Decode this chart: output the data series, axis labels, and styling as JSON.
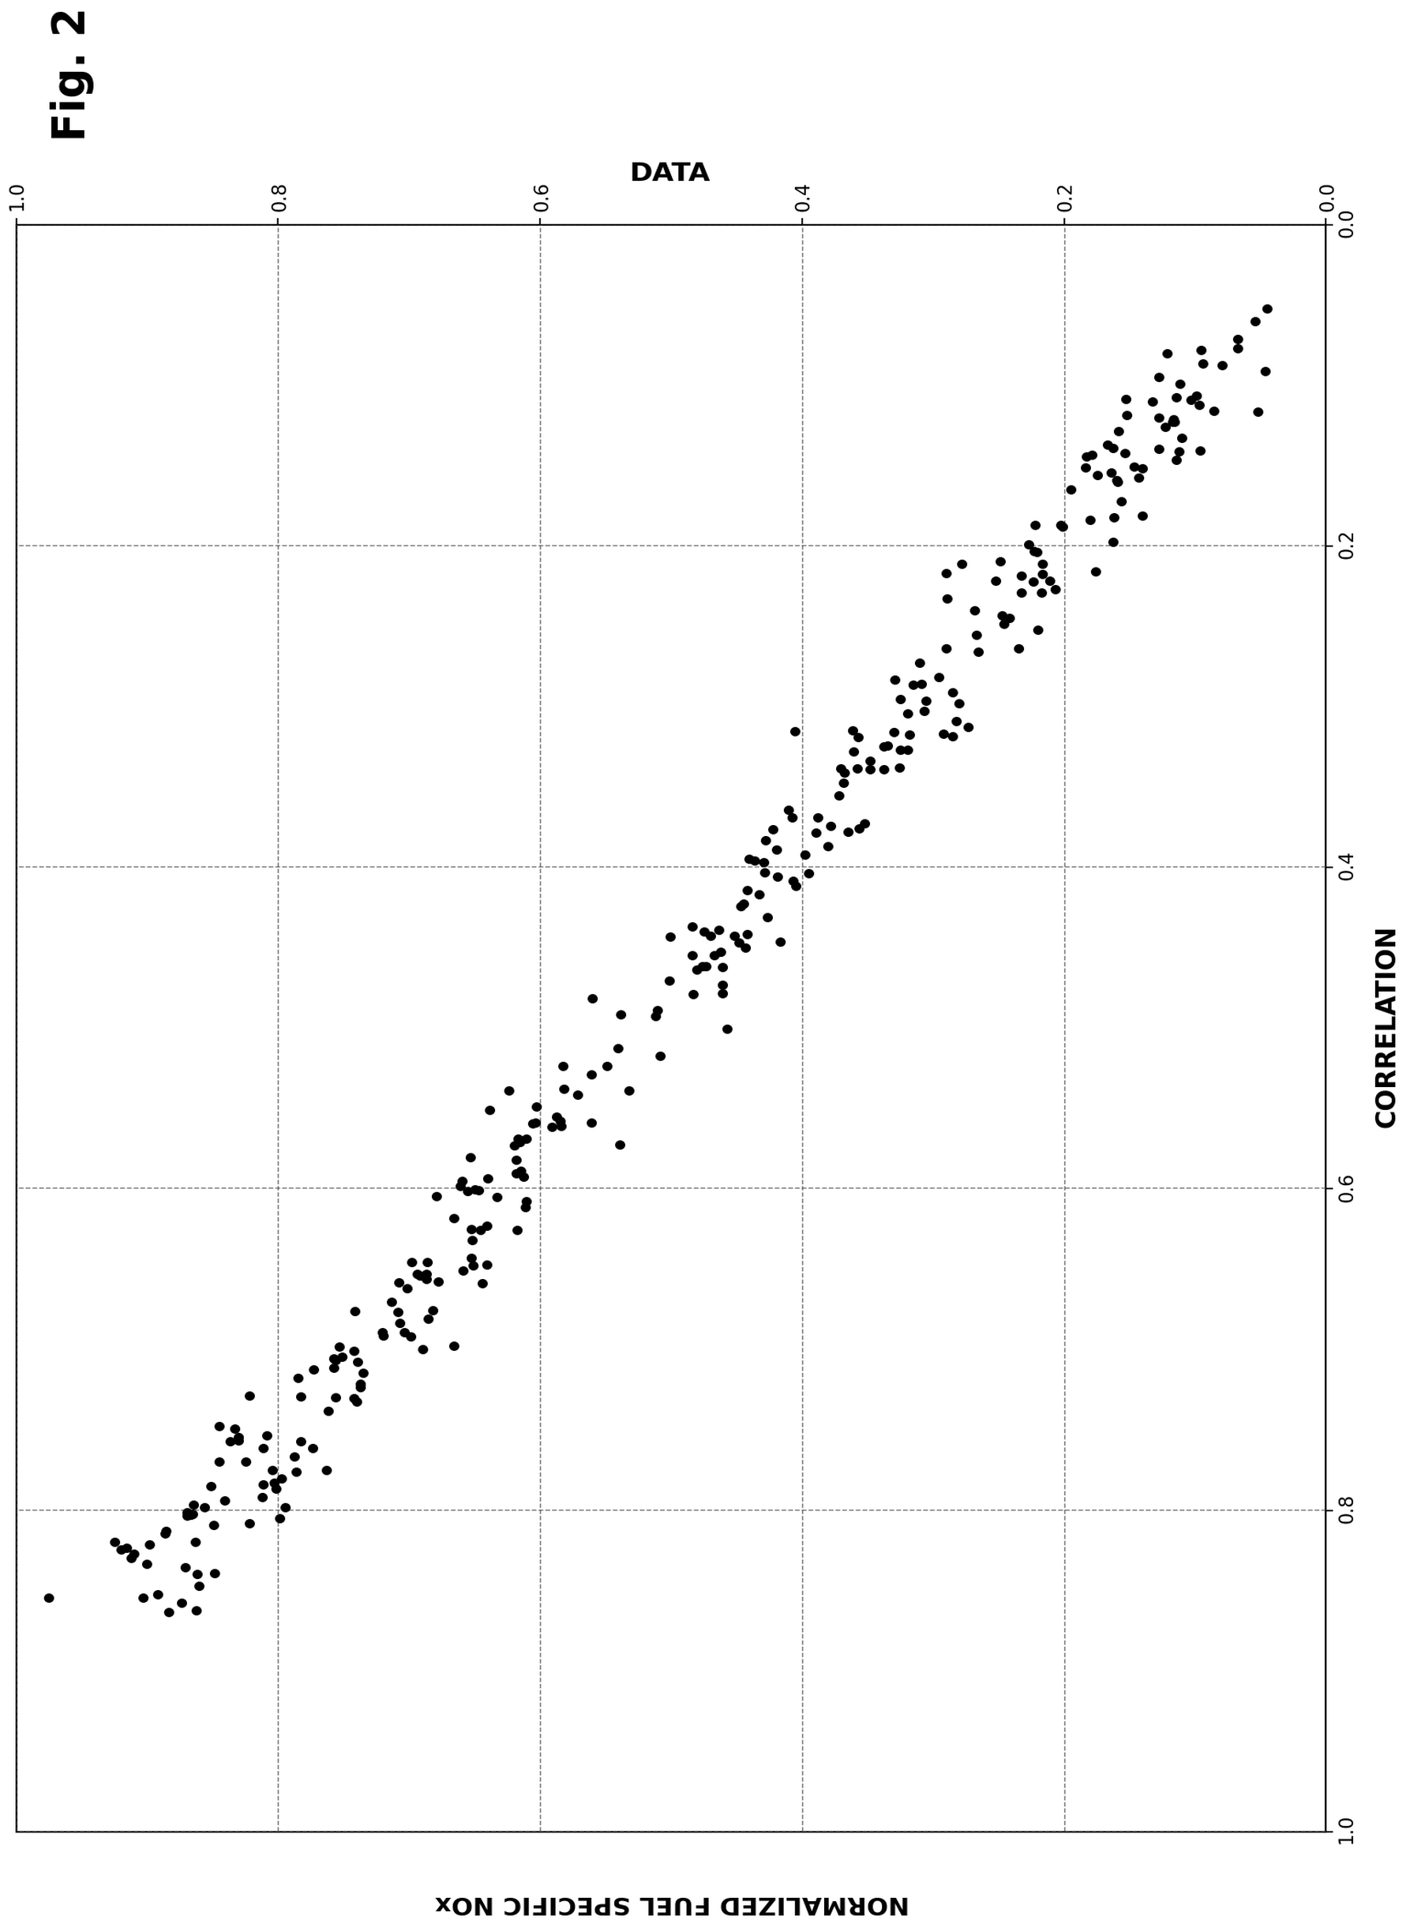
{
  "title": "NORMALIZED FUEL SPECIFIC NOx",
  "xlabel": "CORRELATION",
  "ylabel": "DATA",
  "fig_label": "Fig. 2",
  "x_ticks": [
    1.0,
    0.8,
    0.6,
    0.4,
    0.2,
    0.0
  ],
  "y_ticks": [
    0.0,
    0.2,
    0.4,
    0.6,
    0.8,
    1.0
  ],
  "marker_color": "#000000",
  "marker_size": 48,
  "background_color": "#ffffff",
  "grid_color": "#555555",
  "grid_linestyle": "--",
  "seed": 42,
  "n_points": 300,
  "outliers": [
    [
      0.855,
      0.975
    ],
    [
      0.82,
      0.925
    ],
    [
      0.825,
      0.92
    ],
    [
      0.77,
      0.845
    ],
    [
      0.755,
      0.83
    ],
    [
      0.77,
      0.825
    ]
  ]
}
